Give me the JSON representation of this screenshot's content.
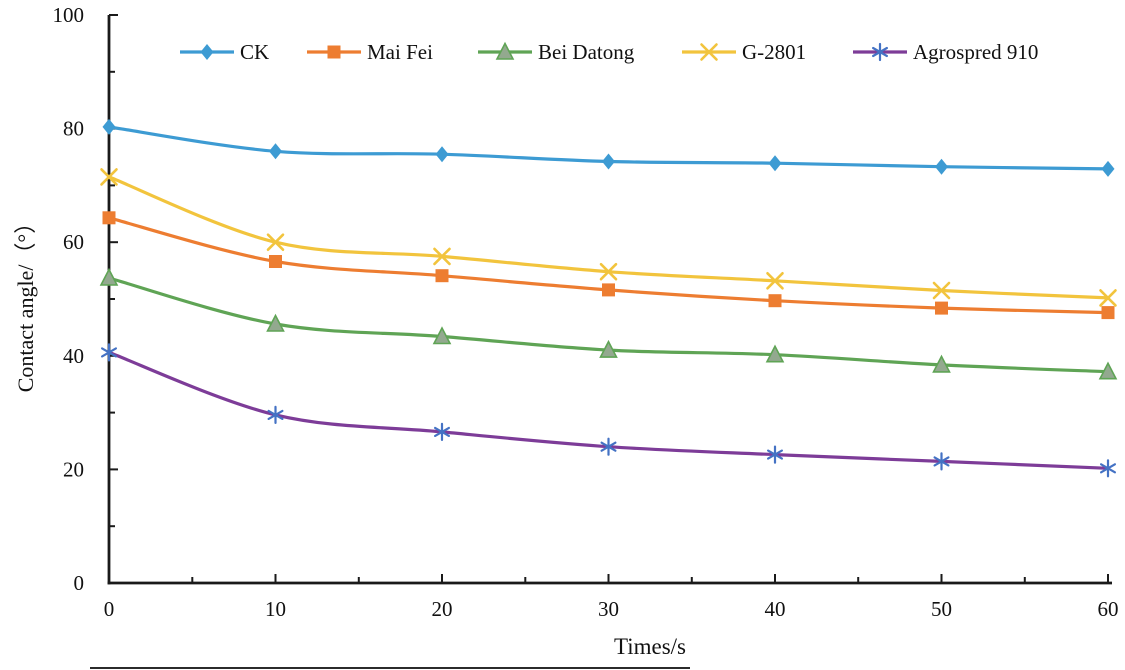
{
  "chart_data": {
    "type": "line",
    "title": "",
    "xlabel": "Times/s",
    "ylabel": "Contact angle/（°）",
    "x": [
      0,
      10,
      20,
      30,
      40,
      50,
      60
    ],
    "xlim": [
      0,
      60
    ],
    "ylim": [
      0,
      100
    ],
    "x_major_ticks": [
      0,
      10,
      20,
      30,
      40,
      50,
      60
    ],
    "x_minor_tick_step": 5,
    "y_major_ticks": [
      0,
      20,
      40,
      60,
      80,
      100
    ],
    "y_minor_tick_step": 10,
    "grid": "off",
    "line_style": "smooth",
    "legend_position": "top-inside",
    "axis_color": "#1a1a1a",
    "text_color": "#111111",
    "series": [
      {
        "name": "CK",
        "color": "#3D9BD3",
        "marker": "diamond",
        "marker_color": "#3D9BD3",
        "values": [
          80.3,
          76.0,
          75.5,
          74.2,
          73.9,
          73.3,
          72.9
        ]
      },
      {
        "name": "Mai Fei",
        "color": "#ED7D31",
        "marker": "square",
        "marker_color": "#ED7D31",
        "values": [
          64.3,
          56.6,
          54.1,
          51.6,
          49.7,
          48.4,
          47.6
        ]
      },
      {
        "name": "Bei Datong",
        "color": "#5FA455",
        "marker": "triangle",
        "marker_color": "#93A98F",
        "marker_border": "#5FA455",
        "values": [
          53.7,
          45.6,
          43.4,
          41.0,
          40.2,
          38.4,
          37.2
        ]
      },
      {
        "name": "G-2801",
        "color": "#F2C43D",
        "marker": "x-cross",
        "marker_color": "#F2C43D",
        "values": [
          71.5,
          60.0,
          57.5,
          54.8,
          53.2,
          51.5,
          50.2
        ]
      },
      {
        "name": "Agrospred 910",
        "color": "#7D3C98",
        "marker": "asterisk",
        "marker_color": "#4472C4",
        "values": [
          40.6,
          29.6,
          26.6,
          24.0,
          22.6,
          21.4,
          20.2
        ]
      }
    ]
  }
}
